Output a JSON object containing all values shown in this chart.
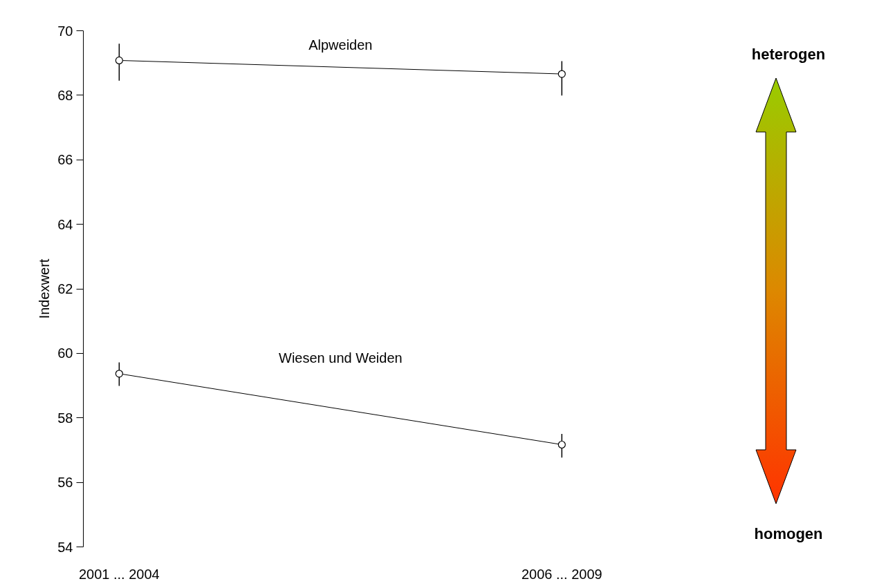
{
  "chart_data": {
    "type": "line",
    "ylabel": "Indexwert",
    "categories": [
      "2001 ... 2004",
      "2006 ... 2009"
    ],
    "series": [
      {
        "name": "Alpweiden",
        "color": "#000000",
        "values": [
          69.08,
          68.66
        ],
        "errors": [
          [
            68.45,
            69.6
          ],
          [
            67.99,
            69.06
          ]
        ]
      },
      {
        "name": "Wiesen und Weiden",
        "color": "#000000",
        "values": [
          59.37,
          57.17
        ],
        "errors": [
          [
            58.99,
            59.72
          ],
          [
            56.77,
            57.5
          ]
        ]
      }
    ],
    "ylim": [
      54,
      70
    ],
    "yticks": [
      54,
      56,
      58,
      60,
      62,
      64,
      66,
      68,
      70
    ],
    "marker": "circle",
    "line_style": "solid",
    "grid": false,
    "legend": false,
    "annotations": [
      "heterogen",
      "homogen"
    ]
  }
}
